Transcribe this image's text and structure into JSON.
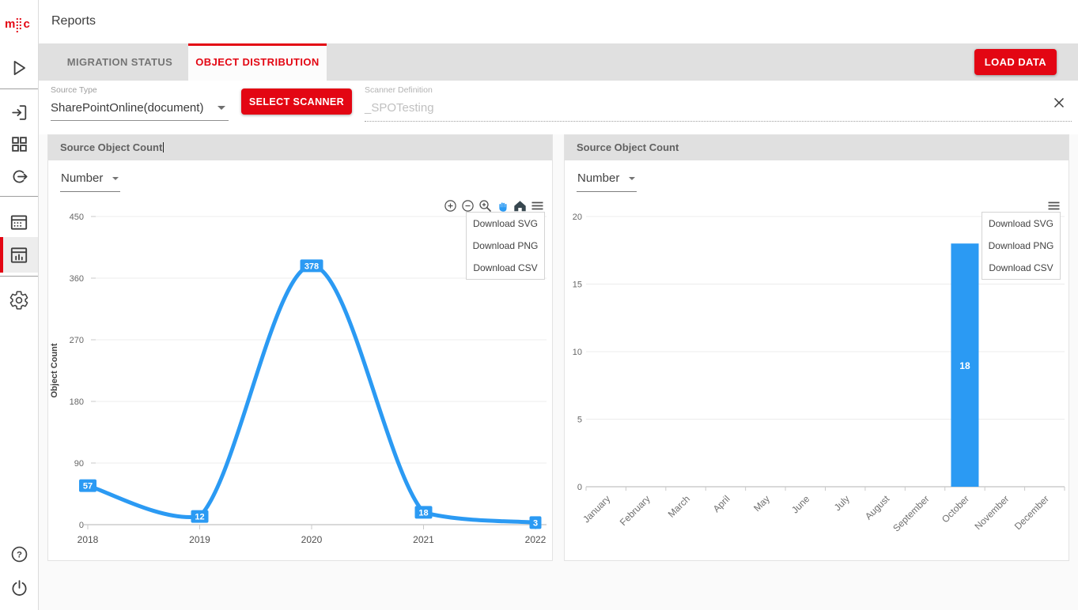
{
  "header": {
    "title": "Reports"
  },
  "sidebar": {
    "logo": {
      "m": "m",
      "c": "c"
    },
    "icons": [
      "play-icon",
      "login-icon",
      "apps-icon",
      "logout-icon",
      "calendar-icon",
      "reports-icon",
      "settings-icon",
      "help-icon",
      "power-icon"
    ],
    "active_item": "reports"
  },
  "tabs": [
    {
      "label": "MIGRATION STATUS",
      "active": false
    },
    {
      "label": "OBJECT DISTRIBUTION",
      "active": true
    }
  ],
  "load_data_label": "LOAD DATA",
  "filters": {
    "source_type_label": "Source Type",
    "source_type_value": "SharePointOnline(document)",
    "select_scanner_label": "SELECT SCANNER",
    "scanner_definition_label": "Scanner Definition",
    "scanner_definition_value": "_SPOTesting"
  },
  "menu_items": [
    "Download SVG",
    "Download PNG",
    "Download CSV"
  ],
  "colors": {
    "accent_red": "#e30613",
    "chart_blue": "#2b9af3"
  },
  "chart_toolbar_icons": [
    "zoom-in",
    "zoom-out",
    "zoom-box-select",
    "pan-hand",
    "reset-home",
    "menu-hamburger"
  ],
  "chart_data": [
    {
      "type": "line",
      "panel_title": "Source Object Count",
      "unit_selector": "Number",
      "x": [
        "2018",
        "2019",
        "2020",
        "2021",
        "2022"
      ],
      "values": [
        57,
        12,
        378,
        18,
        3
      ],
      "ylabel": "Object Count",
      "yticks": [
        0,
        90,
        180,
        270,
        360,
        450
      ],
      "ylim": [
        0,
        450
      ],
      "grid": true,
      "series_color": "#2b9af3"
    },
    {
      "type": "bar",
      "panel_title": "Source Object Count",
      "unit_selector": "Number",
      "categories": [
        "January",
        "February",
        "March",
        "April",
        "May",
        "June",
        "July",
        "August",
        "September",
        "October",
        "November",
        "December"
      ],
      "values": [
        0,
        0,
        0,
        0,
        0,
        0,
        0,
        0,
        0,
        18,
        0,
        0
      ],
      "ylabel": "",
      "yticks": [
        0,
        5,
        10,
        15,
        20
      ],
      "ylim": [
        0,
        20
      ],
      "grid": true,
      "series_color": "#2b9af3"
    }
  ]
}
